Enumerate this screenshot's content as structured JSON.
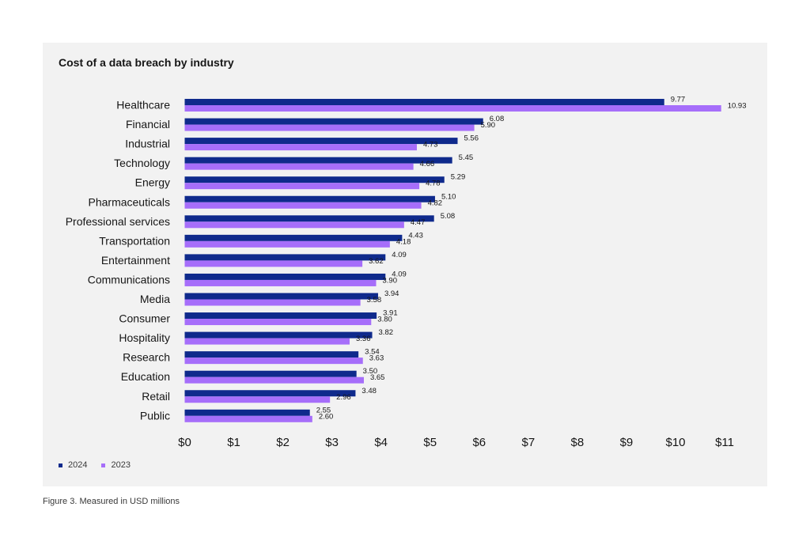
{
  "chart_data": {
    "type": "bar",
    "orientation": "horizontal",
    "title": "Cost of a data breach by industry",
    "categories": [
      "Healthcare",
      "Financial",
      "Industrial",
      "Technology",
      "Energy",
      "Pharmaceuticals",
      "Professional services",
      "Transportation",
      "Entertainment",
      "Communications",
      "Media",
      "Consumer",
      "Hospitality",
      "Research",
      "Education",
      "Retail",
      "Public"
    ],
    "series": [
      {
        "name": "2024",
        "color": "#0f2a8c",
        "values": [
          9.77,
          6.08,
          5.56,
          5.45,
          5.29,
          5.1,
          5.08,
          4.43,
          4.09,
          4.09,
          3.94,
          3.91,
          3.82,
          3.54,
          3.5,
          3.48,
          2.55
        ],
        "labels": [
          "9.77",
          "6.08",
          "5.56",
          "5.45",
          "5.29",
          "5.10",
          "5.08",
          "4.43",
          "4.09",
          "4.09",
          "3.94",
          "3.91",
          "3.82",
          "3.54",
          "3.50",
          "3.48",
          "2.55"
        ]
      },
      {
        "name": "2023",
        "color": "#a66efa",
        "values": [
          10.93,
          5.9,
          4.73,
          4.66,
          4.78,
          4.82,
          4.47,
          4.18,
          3.62,
          3.9,
          3.58,
          3.8,
          3.36,
          3.63,
          3.65,
          2.96,
          2.6
        ],
        "labels": [
          "10.93",
          "5.90",
          "4.73",
          "4.66",
          "4.78",
          "4.82",
          "4.47",
          "4.18",
          "3.62",
          "3.90",
          "3.58",
          "3.80",
          "3.36",
          "3.63",
          "3.65",
          "2.96",
          "2.60"
        ]
      }
    ],
    "xlim": [
      0,
      11
    ],
    "x_ticks": [
      "$0",
      "$1",
      "$2",
      "$3",
      "$4",
      "$5",
      "$6",
      "$7",
      "$8",
      "$9",
      "$10",
      "$11"
    ],
    "grid": false,
    "legend_position": "bottom-left"
  },
  "caption": "Figure 3. Measured in USD millions"
}
